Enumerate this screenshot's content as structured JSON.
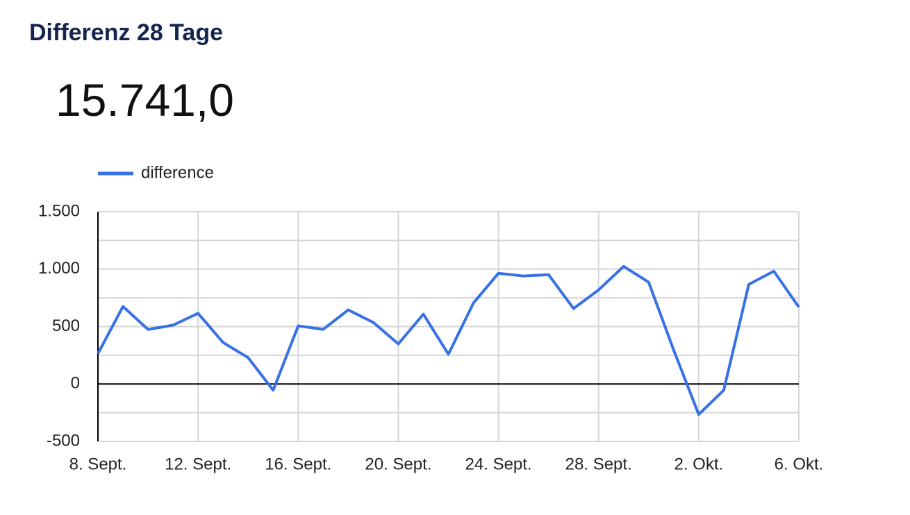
{
  "header": {
    "title": "Differenz 28 Tage",
    "value": "15.741,0"
  },
  "chart_data": {
    "type": "line",
    "categories": [
      "8. Sept.",
      null,
      null,
      null,
      "12. Sept.",
      null,
      null,
      null,
      "16. Sept.",
      null,
      null,
      null,
      "20. Sept.",
      null,
      null,
      null,
      "24. Sept.",
      null,
      null,
      null,
      "28. Sept.",
      null,
      null,
      null,
      "2. Okt.",
      null,
      null,
      null,
      "6. Okt."
    ],
    "series": [
      {
        "name": "difference",
        "color": "#3771e6",
        "values": [
          265,
          675,
          475,
          512,
          615,
          361,
          229,
          -54,
          506,
          476,
          645,
          536,
          349,
          608,
          259,
          705,
          964,
          940,
          952,
          657,
          819,
          1024,
          886,
          295,
          -265,
          -54,
          867,
          982,
          669
        ]
      }
    ],
    "ylim": [
      -500,
      1500
    ],
    "yticks": [
      {
        "value": -500,
        "label": "-500"
      },
      0,
      500,
      {
        "value": 1000,
        "label": "1.000"
      },
      {
        "value": 1500,
        "label": "1.500"
      }
    ],
    "y_minor_ticks": [
      -250,
      250,
      750,
      1250
    ],
    "grid": true,
    "legend": "top-left"
  }
}
